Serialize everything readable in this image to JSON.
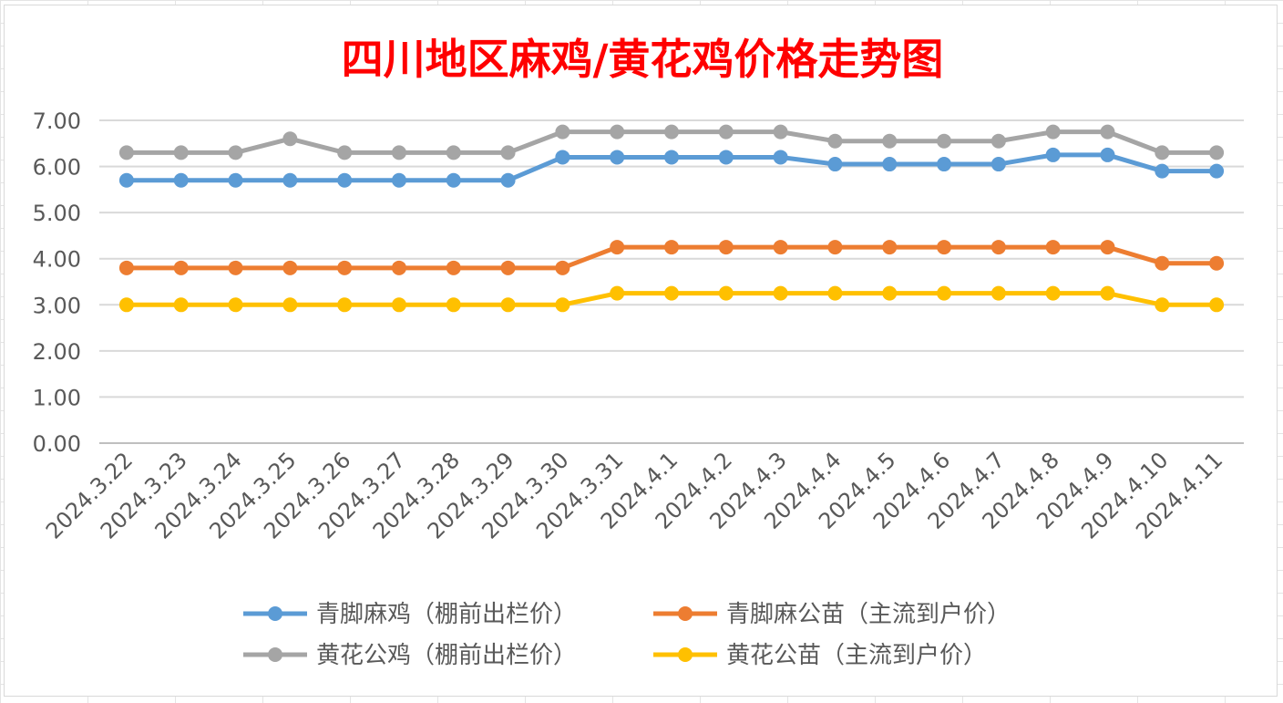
{
  "chart_data": {
    "type": "line",
    "title": "四川地区麻鸡/黄花鸡价格走势图",
    "title_color": "#ff0000",
    "categories": [
      "2024.3.22",
      "2024.3.23",
      "2024.3.24",
      "2024.3.25",
      "2024.3.26",
      "2024.3.27",
      "2024.3.28",
      "2024.3.29",
      "2024.3.30",
      "2024.3.31",
      "2024.4.1",
      "2024.4.2",
      "2024.4.3",
      "2024.4.4",
      "2024.4.5",
      "2024.4.6",
      "2024.4.7",
      "2024.4.8",
      "2024.4.9",
      "2024.4.10",
      "2024.4.11"
    ],
    "ylim": [
      0,
      7
    ],
    "yticks": [
      "0.00",
      "1.00",
      "2.00",
      "3.00",
      "4.00",
      "5.00",
      "6.00",
      "7.00"
    ],
    "grid": true,
    "legend_position": "bottom",
    "series": [
      {
        "name": "青脚麻鸡（棚前出栏价）",
        "color": "#5b9bd5",
        "values": [
          5.7,
          5.7,
          5.7,
          5.7,
          5.7,
          5.7,
          5.7,
          5.7,
          6.2,
          6.2,
          6.2,
          6.2,
          6.2,
          6.05,
          6.05,
          6.05,
          6.05,
          6.25,
          6.25,
          5.9,
          5.9
        ]
      },
      {
        "name": "青脚麻公苗（主流到户价）",
        "color": "#ed7d31",
        "values": [
          3.8,
          3.8,
          3.8,
          3.8,
          3.8,
          3.8,
          3.8,
          3.8,
          3.8,
          4.25,
          4.25,
          4.25,
          4.25,
          4.25,
          4.25,
          4.25,
          4.25,
          4.25,
          4.25,
          3.9,
          3.9
        ]
      },
      {
        "name": "黄花公鸡（棚前出栏价）",
        "color": "#a5a5a5",
        "values": [
          6.3,
          6.3,
          6.3,
          6.6,
          6.3,
          6.3,
          6.3,
          6.3,
          6.75,
          6.75,
          6.75,
          6.75,
          6.75,
          6.55,
          6.55,
          6.55,
          6.55,
          6.75,
          6.75,
          6.3,
          6.3
        ]
      },
      {
        "name": "黄花公苗（主流到户价）",
        "color": "#ffc000",
        "values": [
          3.0,
          3.0,
          3.0,
          3.0,
          3.0,
          3.0,
          3.0,
          3.0,
          3.0,
          3.25,
          3.25,
          3.25,
          3.25,
          3.25,
          3.25,
          3.25,
          3.25,
          3.25,
          3.25,
          3.0,
          3.0
        ]
      }
    ]
  }
}
